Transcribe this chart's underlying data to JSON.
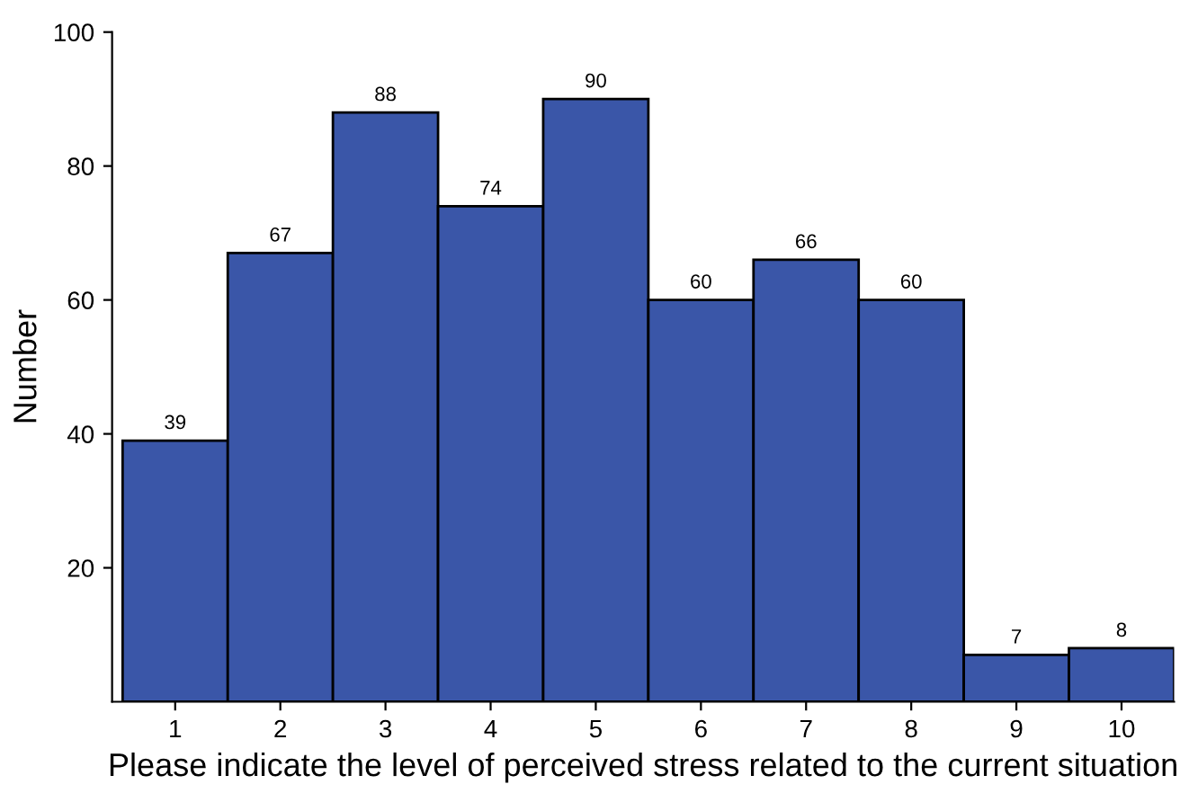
{
  "chart_data": {
    "type": "bar",
    "xlabel": "Please indicate the level of perceived stress related to the current situation",
    "ylabel": "Number",
    "categories": [
      "1",
      "2",
      "3",
      "4",
      "5",
      "6",
      "7",
      "8",
      "9",
      "10"
    ],
    "values": [
      39,
      67,
      88,
      74,
      90,
      60,
      66,
      60,
      7,
      8
    ],
    "color": "#3a56a8",
    "ylim": [
      0,
      100
    ],
    "yticks": [
      20,
      40,
      60,
      80,
      100
    ],
    "data_labels": true,
    "grid": false
  }
}
